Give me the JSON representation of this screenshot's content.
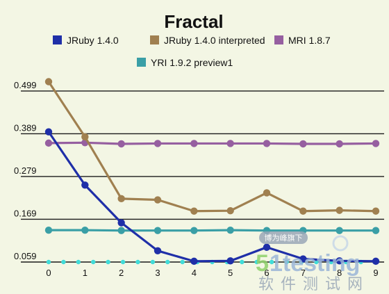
{
  "chart_data": {
    "type": "line",
    "title": "Fractal",
    "xlabel": "",
    "ylabel": "",
    "x": [
      0,
      1,
      2,
      3,
      4,
      5,
      6,
      7,
      8,
      9
    ],
    "xticks": [
      "0",
      "1",
      "2",
      "3",
      "4",
      "5",
      "6",
      "7",
      "8",
      "9"
    ],
    "yticks": [
      {
        "value": 0.059,
        "label": "0.059"
      },
      {
        "value": 0.169,
        "label": "0.169"
      },
      {
        "value": 0.279,
        "label": "0.279"
      },
      {
        "value": 0.389,
        "label": "0.389"
      },
      {
        "value": 0.499,
        "label": "0.499"
      }
    ],
    "ylim": [
      0.059,
      0.54
    ],
    "xlim": [
      0,
      9
    ],
    "grid": "horizontal",
    "legend_position": "top",
    "series": [
      {
        "name": "JRuby 1.4.0",
        "color": "#1f2fa8",
        "values": [
          0.394,
          0.257,
          0.16,
          0.088,
          0.061,
          0.062,
          0.097,
          0.067,
          0.062,
          0.061
        ]
      },
      {
        "name": "JRuby 1.4.0 interpreted",
        "color": "#a08050",
        "values": [
          0.523,
          0.381,
          0.222,
          0.219,
          0.19,
          0.191,
          0.237,
          0.19,
          0.192,
          0.19
        ]
      },
      {
        "name": "MRI 1.8.7",
        "color": "#965fa0",
        "values": [
          0.365,
          0.366,
          0.363,
          0.364,
          0.364,
          0.364,
          0.364,
          0.363,
          0.363,
          0.364
        ]
      },
      {
        "name": "YRI 1.9.2 preview1",
        "color": "#3a9fa6",
        "values": [
          0.141,
          0.141,
          0.14,
          0.14,
          0.14,
          0.141,
          0.14,
          0.14,
          0.14,
          0.14
        ]
      }
    ],
    "baseline_dots": {
      "color": "#40dcd8",
      "value": 0.059,
      "count": 23
    }
  },
  "watermark": {
    "badge": "博为峰旗下",
    "brand_green": "5",
    "brand_blue": "1testing",
    "chinese": "软件测试网"
  }
}
